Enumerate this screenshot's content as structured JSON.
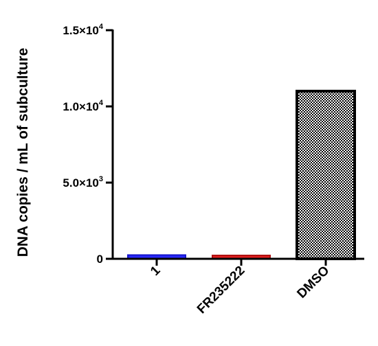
{
  "chart_data": {
    "type": "bar",
    "categories": [
      "1",
      "FR235222",
      "DMSO"
    ],
    "values": [
      250,
      100,
      11000
    ],
    "ylabel": "DNA copies / mL of subculture",
    "ylim": [
      0,
      15000
    ],
    "yticks": [
      {
        "value": 0,
        "mantissa": "0",
        "exp": ""
      },
      {
        "value": 5000,
        "mantissa": "5.0×10",
        "exp": "3"
      },
      {
        "value": 10000,
        "mantissa": "1.0×10",
        "exp": "4"
      },
      {
        "value": 15000,
        "mantissa": "1.5×10",
        "exp": "4"
      }
    ],
    "bar_styles": [
      {
        "fill": "#2a2aff",
        "stroke": "#1414cc",
        "pattern": false
      },
      {
        "fill": "#e02020",
        "stroke": "#b01010",
        "pattern": false
      },
      {
        "fill": "#ffffff",
        "stroke": "#000000",
        "pattern": true
      }
    ],
    "grid": false
  }
}
